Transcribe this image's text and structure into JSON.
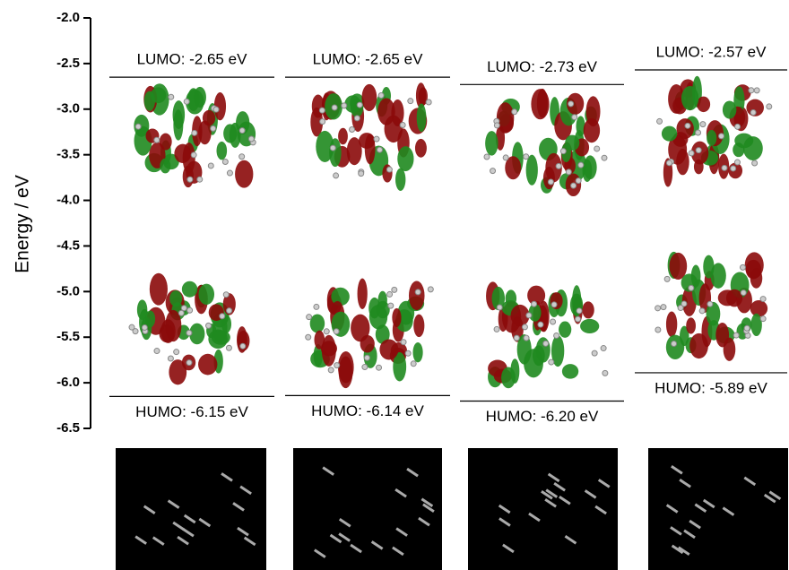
{
  "chart_data": {
    "type": "energy-levels",
    "ylabel": "Energy / eV",
    "ylim": [
      -2.0,
      -6.5
    ],
    "yticks": [
      {
        "value": -2.0,
        "label": "-2.0"
      },
      -2.5,
      {
        "value": -3.0,
        "label": "-3.0"
      },
      -3.5,
      {
        "value": -4.0,
        "label": "-4.0"
      },
      -4.5,
      {
        "value": -5.0,
        "label": "-5.0"
      },
      -5.5,
      {
        "value": -6.0,
        "label": "-6.0"
      },
      -6.5
    ],
    "color": "#000000",
    "series": [
      {
        "values": [
          -2.65,
          -2.65,
          -2.73,
          -2.57
        ],
        "value_labels": [
          "LUMO: -2.65 eV",
          "LUMO: -2.65 eV",
          "LUMO: -2.73 eV",
          "LUMO: -2.57 eV"
        ]
      },
      {
        "values": [
          -6.15,
          -6.14,
          -6.2,
          -5.89
        ],
        "value_labels": [
          "HUMO: -6.15 eV",
          "HUMO: -6.14 eV",
          "HUMO: -6.20 eV",
          "HUMO: -5.89 eV"
        ]
      }
    ]
  }
}
